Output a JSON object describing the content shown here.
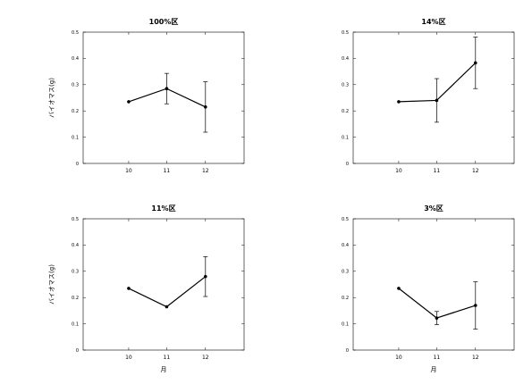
{
  "chart_data": [
    {
      "type": "line",
      "title": "100%区",
      "xlabel": "",
      "ylabel": "バイオマス(g)",
      "categories": [
        "10",
        "11",
        "12"
      ],
      "values": [
        0.235,
        0.285,
        0.215
      ],
      "error": [
        0,
        0.058,
        0.096
      ],
      "ylim": [
        0,
        0.5
      ],
      "yticks": [
        "0",
        "0.1",
        "0.2",
        "0.3",
        "0.4",
        "0.5"
      ],
      "grid": false
    },
    {
      "type": "line",
      "title": "14%区",
      "xlabel": "",
      "ylabel": "",
      "categories": [
        "10",
        "11",
        "12"
      ],
      "values": [
        0.235,
        0.24,
        0.383
      ],
      "error": [
        0,
        0.083,
        0.098
      ],
      "ylim": [
        0,
        0.5
      ],
      "yticks": [
        "0",
        "0.1",
        "0.2",
        "0.3",
        "0.4",
        "0.5"
      ],
      "grid": false
    },
    {
      "type": "line",
      "title": "11%区",
      "xlabel": "月",
      "ylabel": "バイオマス(g)",
      "categories": [
        "10",
        "11",
        "12"
      ],
      "values": [
        0.235,
        0.165,
        0.28
      ],
      "error": [
        0,
        0,
        0.076
      ],
      "ylim": [
        0,
        0.5
      ],
      "yticks": [
        "0",
        "0.1",
        "0.2",
        "0.3",
        "0.4",
        "0.5"
      ],
      "grid": false
    },
    {
      "type": "line",
      "title": "3%区",
      "xlabel": "月",
      "ylabel": "",
      "categories": [
        "10",
        "11",
        "12"
      ],
      "values": [
        0.235,
        0.122,
        0.17
      ],
      "error": [
        0,
        0.025,
        0.09
      ],
      "ylim": [
        0,
        0.5
      ],
      "yticks": [
        "0",
        "0.1",
        "0.2",
        "0.3",
        "0.4",
        "0.5"
      ],
      "grid": false
    }
  ]
}
